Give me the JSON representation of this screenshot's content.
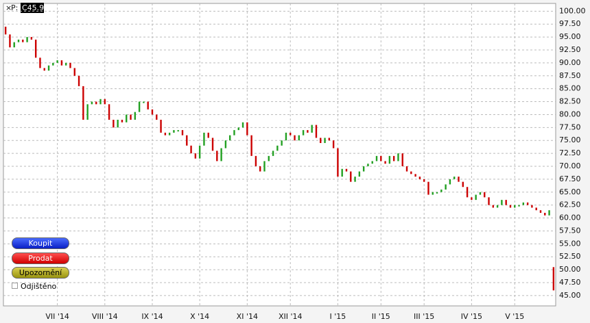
{
  "chart_data": {
    "type": "candlestick",
    "price_label": "P:",
    "price": "C45.93",
    "up_color": "#22a022",
    "down_color": "#cc0000",
    "grid": true,
    "ylim": [
      43,
      101.5
    ],
    "yticks": [
      {
        "value": 45,
        "label": "45.00"
      },
      {
        "value": 47.5,
        "label": "47.50"
      },
      {
        "value": 50,
        "label": "50.00"
      },
      {
        "value": 52.5,
        "label": "52.50"
      },
      {
        "value": 55,
        "label": "55.00"
      },
      {
        "value": 57.5,
        "label": "57.50"
      },
      {
        "value": 60,
        "label": "60.00"
      },
      {
        "value": 62.5,
        "label": "62.50"
      },
      {
        "value": 65,
        "label": "65.00"
      },
      {
        "value": 67.5,
        "label": "67.50"
      },
      {
        "value": 70,
        "label": "70.00"
      },
      {
        "value": 72.5,
        "label": "72.50"
      },
      {
        "value": 75,
        "label": "75.00"
      },
      {
        "value": 77.5,
        "label": "77.50"
      },
      {
        "value": 80,
        "label": "80.00"
      },
      {
        "value": 82.5,
        "label": "82.50"
      },
      {
        "value": 85,
        "label": "85.00"
      },
      {
        "value": 87.5,
        "label": "87.50"
      },
      {
        "value": 90,
        "label": "90.00"
      },
      {
        "value": 92.5,
        "label": "92.50"
      },
      {
        "value": 95,
        "label": "95.00"
      },
      {
        "value": 97.5,
        "label": "97.50"
      },
      {
        "value": 100,
        "label": "100.00"
      }
    ],
    "categories": [
      null,
      null,
      null,
      null,
      null,
      null,
      null,
      null,
      null,
      null,
      null,
      null,
      "VII '14",
      null,
      null,
      null,
      null,
      null,
      null,
      null,
      null,
      null,
      null,
      "VIII '14",
      null,
      null,
      null,
      null,
      null,
      null,
      null,
      null,
      null,
      null,
      "IX '14",
      null,
      null,
      null,
      null,
      null,
      null,
      null,
      null,
      null,
      null,
      "X '14",
      null,
      null,
      null,
      null,
      null,
      null,
      null,
      null,
      null,
      null,
      "XI '14",
      null,
      null,
      null,
      null,
      null,
      null,
      null,
      null,
      null,
      "XII '14",
      null,
      null,
      null,
      null,
      null,
      null,
      null,
      null,
      null,
      null,
      "I '15",
      null,
      null,
      null,
      null,
      null,
      null,
      null,
      null,
      null,
      "II '15",
      null,
      null,
      null,
      null,
      null,
      null,
      null,
      null,
      null,
      "III '15",
      null,
      null,
      null,
      null,
      null,
      null,
      null,
      null,
      null,
      null,
      "IV '15",
      null,
      null,
      null,
      null,
      null,
      null,
      null,
      null,
      null,
      "V '15",
      null,
      null,
      null,
      null,
      null,
      null,
      null,
      null,
      null
    ],
    "open": [
      97,
      95.5,
      93,
      94,
      94.5,
      94,
      95,
      94.5,
      91,
      89,
      88.5,
      89.5,
      90,
      90.5,
      89.5,
      90,
      89,
      87.5,
      85.5,
      79,
      82,
      82.5,
      82,
      83,
      82,
      79,
      77.5,
      79,
      78.5,
      80,
      79,
      80.5,
      82.5,
      82.5,
      81,
      80,
      79,
      76.5,
      76,
      76.5,
      77,
      77,
      76,
      74,
      72.5,
      71.5,
      74,
      76.5,
      75.5,
      73,
      71,
      73.5,
      75,
      76,
      77,
      77.5,
      78.5,
      76,
      72,
      70,
      69,
      71,
      72,
      73,
      74,
      75,
      76.5,
      76,
      75,
      76,
      77,
      76.5,
      78,
      75.5,
      74.5,
      75.5,
      75,
      73.5,
      68,
      69.5,
      69,
      67,
      68,
      69,
      70,
      70.5,
      71,
      72,
      71,
      70.5,
      72,
      71,
      72.5,
      70,
      69,
      68.5,
      68,
      67.5,
      67,
      64.5,
      65,
      65,
      65.5,
      66.5,
      67.5,
      68,
      67,
      66,
      64,
      63.5,
      64.5,
      65,
      64,
      62.5,
      62,
      62.5,
      63.5,
      62.5,
      62,
      62.5,
      62.5,
      63,
      62.5,
      62,
      61.5,
      61,
      60.5,
      50.5
    ],
    "close": [
      95.5,
      93,
      94,
      94.5,
      94,
      95,
      94.5,
      91,
      89,
      88.5,
      89.5,
      90,
      90.5,
      89.5,
      90,
      89,
      87.5,
      85.5,
      79,
      82,
      82.5,
      82,
      83,
      82,
      79,
      77.5,
      79,
      78.5,
      80,
      79,
      80.5,
      82.5,
      82.5,
      81,
      80,
      79,
      76.5,
      76,
      76.5,
      77,
      77,
      76,
      74,
      72.5,
      71.5,
      74,
      76.5,
      75.5,
      73,
      71,
      73.5,
      75,
      76,
      77,
      77.5,
      78.5,
      76,
      72,
      70,
      69,
      71,
      72,
      73,
      74,
      75,
      76.5,
      76,
      75,
      76,
      77,
      76.5,
      78,
      75.5,
      74.5,
      75.5,
      75,
      73.5,
      68,
      69.5,
      69,
      67,
      68,
      69,
      70,
      70.5,
      71,
      72,
      71,
      70.5,
      72,
      71,
      72.5,
      70,
      69,
      68.5,
      68,
      67.5,
      67,
      64.5,
      65,
      65,
      65.5,
      66.5,
      67.5,
      68,
      67,
      66,
      64,
      63.5,
      64.5,
      65,
      64,
      62.5,
      62,
      62.5,
      63.5,
      62.5,
      62,
      62.5,
      62.5,
      63,
      62.5,
      62,
      61.5,
      61,
      60.5,
      61.5,
      46
    ]
  },
  "controls": {
    "buy": "Koupit",
    "sell": "Prodat",
    "alert": "Upozornění",
    "unlocked": "Odjištěno"
  }
}
